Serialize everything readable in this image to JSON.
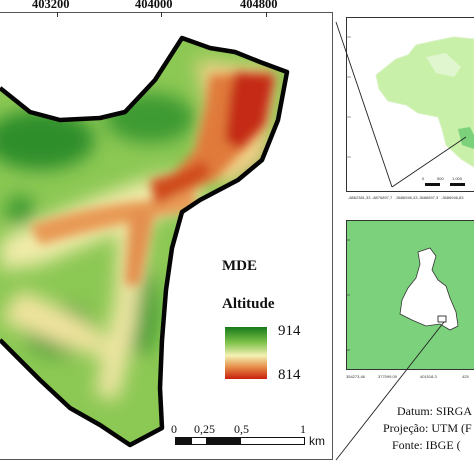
{
  "main_map": {
    "x_ticks": [
      "403200",
      "404000",
      "404800"
    ],
    "legend": {
      "title": "MDE",
      "subtitle": "Altitude",
      "max_label": "914",
      "min_label": "814",
      "colors": [
        "#167a1a",
        "#7fc24a",
        "#f4f1b4",
        "#e58a45",
        "#c8200e"
      ]
    },
    "scalebar": {
      "labels": [
        "0",
        "0,25",
        "0,5",
        "1"
      ],
      "unit": "km"
    }
  },
  "locator_maps": {
    "brazil_map": {
      "scale_labels": [
        "0",
        "500",
        "1.000"
      ],
      "coord_labels": [
        "-8862381,33",
        "-8876897,7",
        "-3686946,33",
        "-3686897,3",
        "-3686946,83"
      ]
    },
    "state_map": {
      "coord_labels": [
        "354273,46",
        "377099,09",
        "401518,3",
        "425"
      ]
    }
  },
  "footer": {
    "datum": "Datum: SIRGA",
    "projection": "Projeção: UTM (F",
    "source": "Fonte: IBGE ("
  }
}
